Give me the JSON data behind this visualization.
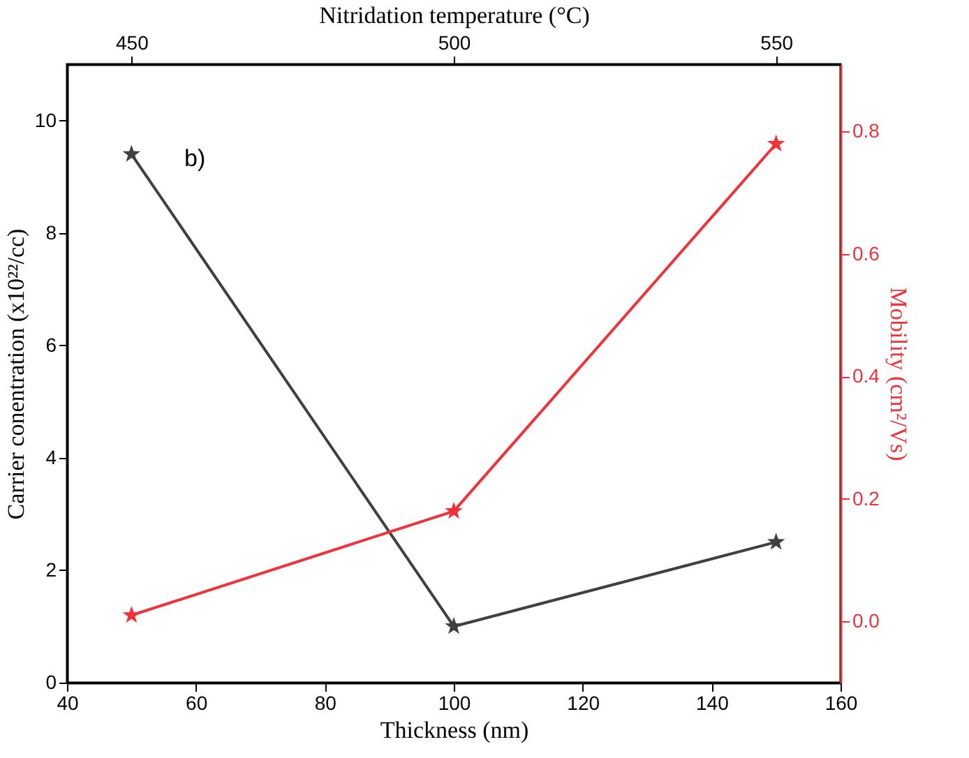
{
  "chart_data": {
    "type": "line",
    "xlabel": "Thickness (nm)",
    "ylabel": "Carrier conentration (x10²²/cc)",
    "y2label": "Mobility (cm²/Vs)",
    "x2label": "Nitridation temperature (°C)",
    "x": [
      50,
      100,
      150
    ],
    "series": [
      {
        "color": "#404040",
        "values": [
          9.4,
          1.0,
          2.5
        ]
      },
      {
        "color": "#f0333a",
        "values": [
          0.01,
          0.18,
          0.78
        ],
        "axis": "y2"
      }
    ],
    "xlim": [
      40,
      160
    ],
    "xticks": [
      40,
      60,
      80,
      100,
      120,
      140,
      160
    ],
    "ylim": [
      0,
      11
    ],
    "yticks": [
      0,
      2,
      4,
      6,
      8,
      10
    ],
    "y2lim": [
      -0.1,
      0.91
    ],
    "y2ticks": [
      {
        "value": 0,
        "label": "0.0"
      },
      0.2,
      0.4,
      0.6,
      0.8
    ],
    "x2lim": [
      440,
      560
    ],
    "x2ticks": [
      450,
      500,
      550
    ],
    "annotations": [
      "b)"
    ],
    "marker": "star",
    "line_style": "solid",
    "grid": false,
    "legend": false
  }
}
